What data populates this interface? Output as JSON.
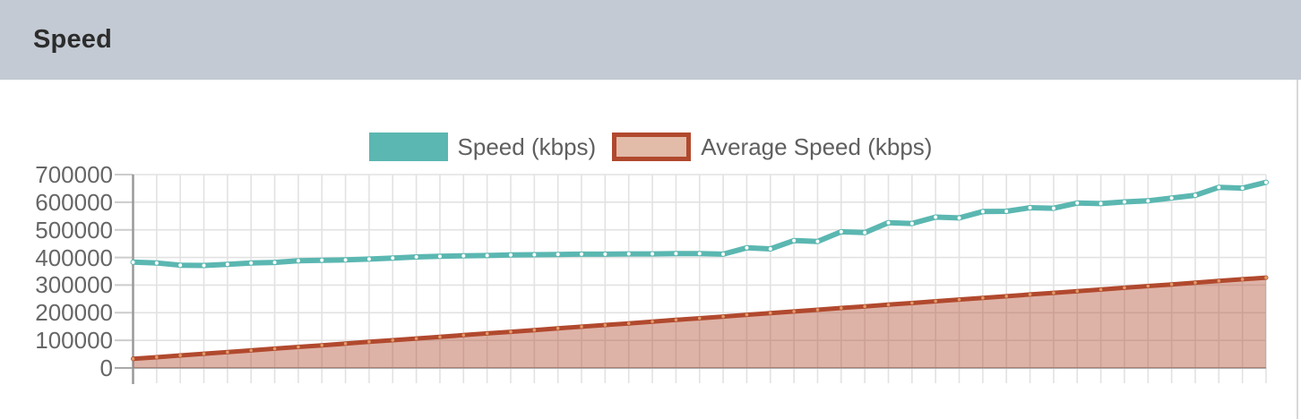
{
  "header": {
    "title": "Speed"
  },
  "legend": {
    "items": [
      {
        "label": "Speed (kbps)",
        "swatch": "solid-teal"
      },
      {
        "label": "Average Speed (kbps)",
        "swatch": "tan-fill-red-border"
      }
    ]
  },
  "colors": {
    "header_bg": "#c3cad3",
    "header_text": "#2c2c2c",
    "speed_line": "#5bb7b1",
    "speed_marker": "#ffffff",
    "avg_line": "#b1492e",
    "avg_marker": "#e09a64",
    "avg_area_fill": "rgba(177,73,46,0.42)",
    "legend_avg_fill": "#e3bba9",
    "grid": "#e2e2e2",
    "tick": "#cccccc",
    "y_axis_line": "#999999",
    "x_baseline": "#aaaaaa",
    "axis_text": "#666666",
    "legend_text": "#5f5f5f"
  },
  "chart_data": {
    "type": "line",
    "title": "",
    "xlabel": "",
    "ylabel": "",
    "x_axis": {
      "tick_labels_visible": false,
      "point_count": 49
    },
    "ylim": [
      0,
      700000
    ],
    "yticks": [
      0,
      100000,
      200000,
      300000,
      400000,
      500000,
      600000,
      700000
    ],
    "grid": true,
    "legend_position": "top-center",
    "series": [
      {
        "name": "Speed (kbps)",
        "color": "#5bb7b1",
        "marker_color": "#ffffff",
        "area_fill": false,
        "values": [
          383000,
          380000,
          372000,
          371000,
          375000,
          380000,
          382000,
          388000,
          390000,
          391000,
          394000,
          398000,
          402000,
          404000,
          406000,
          407000,
          409000,
          410000,
          411000,
          412000,
          412000,
          413000,
          413000,
          414000,
          414000,
          412000,
          435000,
          431000,
          461000,
          458000,
          493000,
          490000,
          526000,
          523000,
          546000,
          543000,
          566000,
          567000,
          580000,
          578000,
          597000,
          595000,
          601000,
          605000,
          615000,
          625000,
          654000,
          651000,
          672000
        ]
      },
      {
        "name": "Average Speed (kbps)",
        "color": "#b1492e",
        "marker_color": "#e09a64",
        "area_fill": true,
        "values": [
          33000,
          39000,
          45500,
          51500,
          57500,
          63500,
          70000,
          76000,
          82000,
          88000,
          94500,
          100500,
          106500,
          112500,
          119000,
          125000,
          131000,
          137000,
          143500,
          149500,
          155500,
          161500,
          168000,
          174000,
          180000,
          186000,
          192500,
          198500,
          204500,
          210500,
          217000,
          223000,
          229000,
          235000,
          241500,
          247500,
          253500,
          259500,
          266000,
          272000,
          278000,
          284000,
          290500,
          296500,
          302500,
          308500,
          315000,
          321000,
          327000
        ]
      }
    ]
  }
}
